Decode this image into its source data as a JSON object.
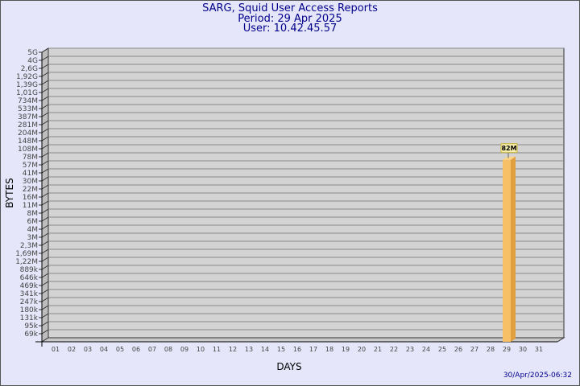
{
  "header": {
    "title": "SARG, Squid User Access Reports",
    "period": "Period: 29 Apr 2025",
    "user": "User: 10.42.45.57"
  },
  "footer": {
    "timestamp": "30/Apr/2025-06:32"
  },
  "chart_data": {
    "type": "bar",
    "xlabel": "DAYS",
    "ylabel": "BYTES",
    "y_scale": "log-like (labeled ticks)",
    "y_ticks": [
      "5G",
      "4G",
      "2,6G",
      "1,92G",
      "1,39G",
      "1,01G",
      "734M",
      "533M",
      "387M",
      "281M",
      "204M",
      "148M",
      "108M",
      "78M",
      "57M",
      "41M",
      "30M",
      "22M",
      "16M",
      "11M",
      "8M",
      "6M",
      "4M",
      "3M",
      "2,3M",
      "1,69M",
      "1,22M",
      "889k",
      "646k",
      "469k",
      "341k",
      "247k",
      "180k",
      "131k",
      "95k",
      "69k"
    ],
    "categories": [
      "01",
      "02",
      "03",
      "04",
      "05",
      "06",
      "07",
      "08",
      "09",
      "10",
      "11",
      "12",
      "13",
      "14",
      "15",
      "16",
      "17",
      "18",
      "19",
      "20",
      "21",
      "22",
      "23",
      "24",
      "25",
      "26",
      "27",
      "28",
      "29",
      "30",
      "31"
    ],
    "values": [
      null,
      null,
      null,
      null,
      null,
      null,
      null,
      null,
      null,
      null,
      null,
      null,
      null,
      null,
      null,
      null,
      null,
      null,
      null,
      null,
      null,
      null,
      null,
      null,
      null,
      null,
      null,
      null,
      "82M",
      null,
      null
    ],
    "data_labels": {
      "29": "82M"
    },
    "grid": true,
    "colors": {
      "background": "#e6e6fa",
      "plot": "#d3d3d3",
      "bar": "#f8c066",
      "bar_side": "#e0a040",
      "title": "#00008b"
    }
  }
}
